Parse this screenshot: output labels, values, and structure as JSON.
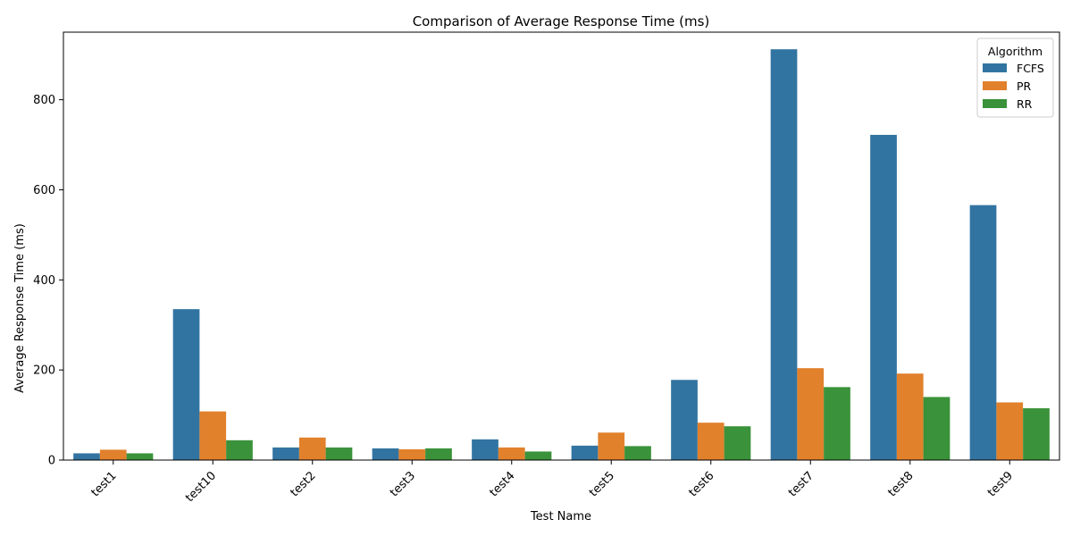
{
  "chart_data": {
    "type": "bar",
    "title": "Comparison of Average Response Time (ms)",
    "xlabel": "Test Name",
    "ylabel": "Average Response Time (ms)",
    "categories": [
      "test1",
      "test10",
      "test2",
      "test3",
      "test4",
      "test5",
      "test6",
      "test7",
      "test8",
      "test9"
    ],
    "series": [
      {
        "name": "FCFS",
        "color": "#3274a1",
        "values": [
          15,
          335,
          28,
          26,
          46,
          32,
          178,
          912,
          722,
          566
        ]
      },
      {
        "name": "PR",
        "color": "#e1812c",
        "values": [
          23,
          108,
          50,
          24,
          28,
          61,
          83,
          204,
          192,
          128
        ]
      },
      {
        "name": "RR",
        "color": "#3a923a",
        "values": [
          15,
          44,
          28,
          26,
          19,
          31,
          75,
          162,
          140,
          115
        ]
      }
    ],
    "ylim": [
      0,
      950
    ],
    "yticks": [
      0,
      200,
      400,
      600,
      800
    ],
    "grid": false,
    "legend": {
      "title": "Algorithm",
      "position": "top-right"
    }
  }
}
